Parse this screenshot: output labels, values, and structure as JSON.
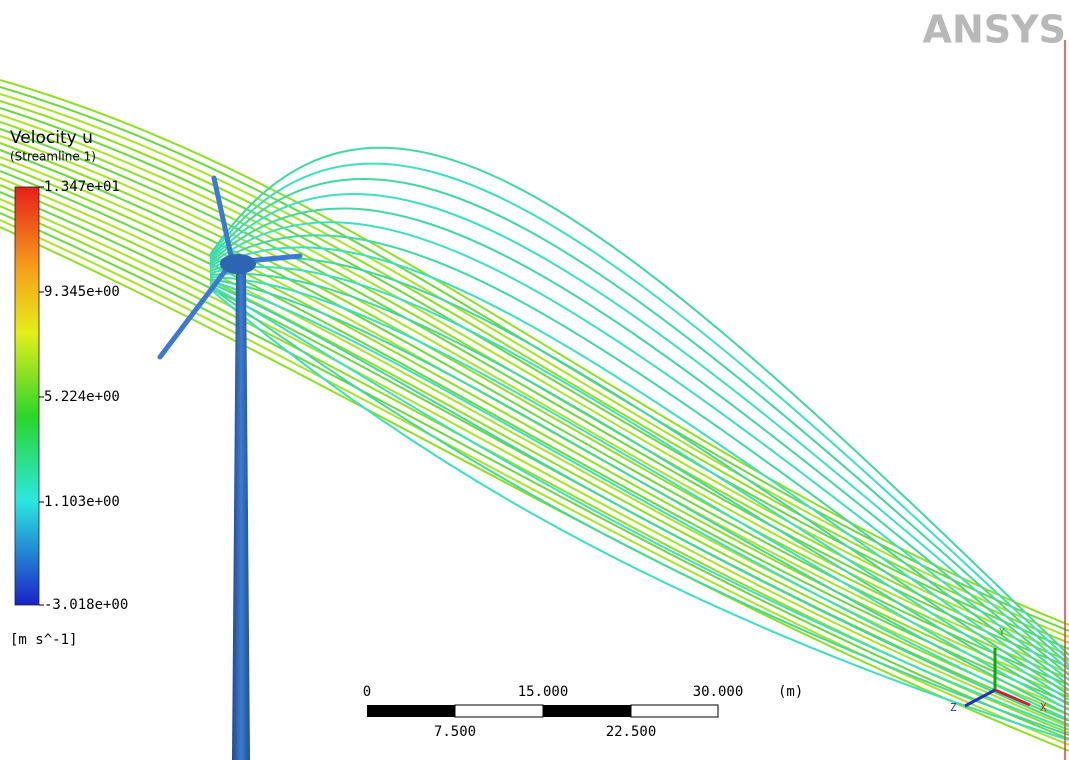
{
  "logo": "ANSYS",
  "legend": {
    "title": "Velocity u",
    "subtitle": "(Streamline 1)",
    "labels": [
      "1.347e+01",
      "9.345e+00",
      "5.224e+00",
      "1.103e+00",
      "-3.018e+00"
    ],
    "unit": "[m s^-1]"
  },
  "scale_bar": {
    "top_labels": [
      "0",
      "15.000",
      "30.000"
    ],
    "bottom_labels": [
      "7.500",
      "22.500"
    ],
    "unit": "(m)"
  },
  "triad": {
    "x": "X",
    "y": "Y",
    "z": "Z"
  }
}
